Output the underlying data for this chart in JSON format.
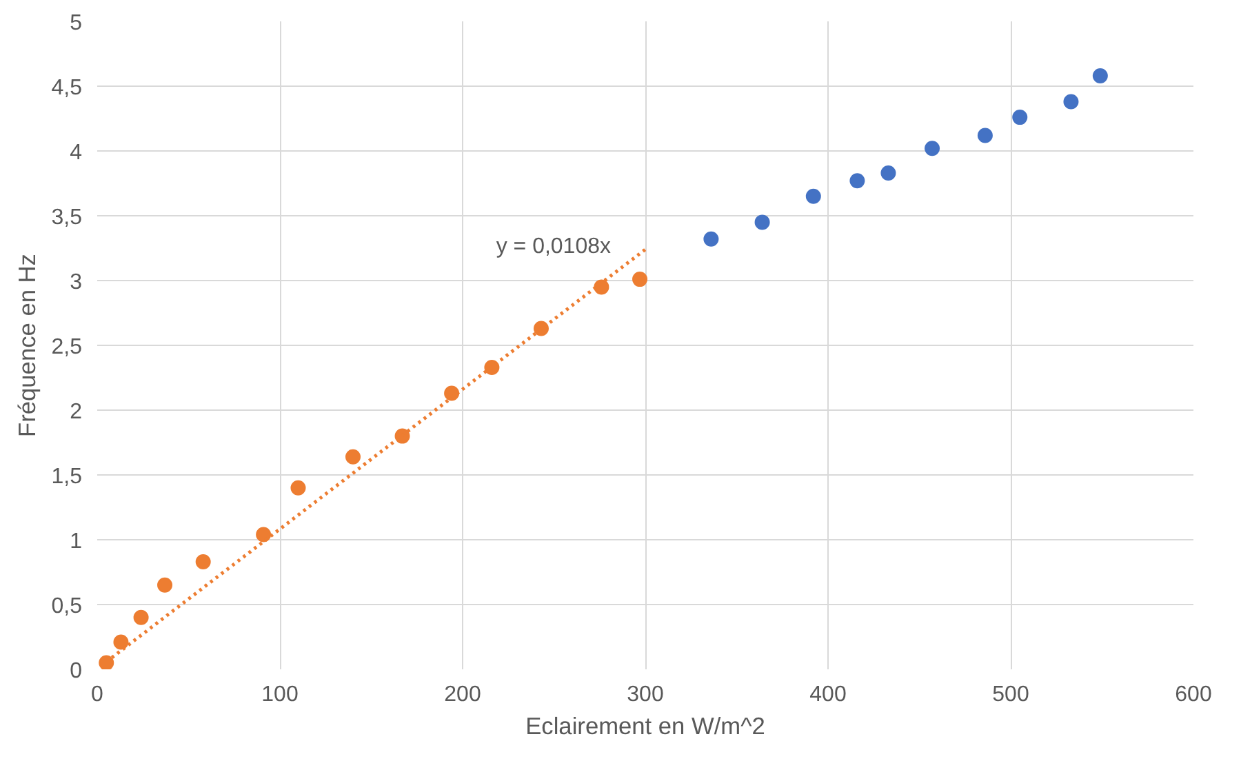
{
  "chart_data": {
    "type": "scatter",
    "xlabel": "Eclairement en W/m^2",
    "ylabel": "Fréquence en Hz",
    "xlim": [
      0,
      600
    ],
    "xticks": [
      0,
      100,
      200,
      300,
      400,
      500,
      600
    ],
    "ylim": [
      0,
      5
    ],
    "yticks": [
      0,
      {
        "value": 0.5,
        "label": "0,5"
      },
      1,
      {
        "value": 1.5,
        "label": "1,5"
      },
      2,
      {
        "value": 2.5,
        "label": "2,5"
      },
      3,
      {
        "value": 3.5,
        "label": "3,5"
      },
      4,
      {
        "value": 4.5,
        "label": "4,5"
      },
      5
    ],
    "grid": true,
    "marker": "circle",
    "series": [
      {
        "color": "#ed7d31",
        "x": [
          5,
          13,
          24,
          37,
          58,
          91,
          110,
          140,
          167,
          194,
          216,
          243,
          276,
          297
        ],
        "values": [
          0.05,
          0.21,
          0.4,
          0.65,
          0.83,
          1.04,
          1.4,
          1.64,
          1.8,
          2.13,
          2.33,
          2.63,
          2.95,
          3.01
        ]
      },
      {
        "color": "#4472c4",
        "x": [
          336,
          364,
          392,
          416,
          433,
          457,
          486,
          505,
          533,
          549
        ],
        "values": [
          3.32,
          3.45,
          3.65,
          3.77,
          3.83,
          4.02,
          4.12,
          4.26,
          4.38,
          4.58
        ]
      },
      {
        "type": "line",
        "line_style": "dotted",
        "marker": "none",
        "color": "#ed7d31",
        "x": [
          8,
          300
        ],
        "values": [
          0.09,
          3.24
        ]
      }
    ],
    "annotations": [
      "y = 0,0108x"
    ]
  }
}
